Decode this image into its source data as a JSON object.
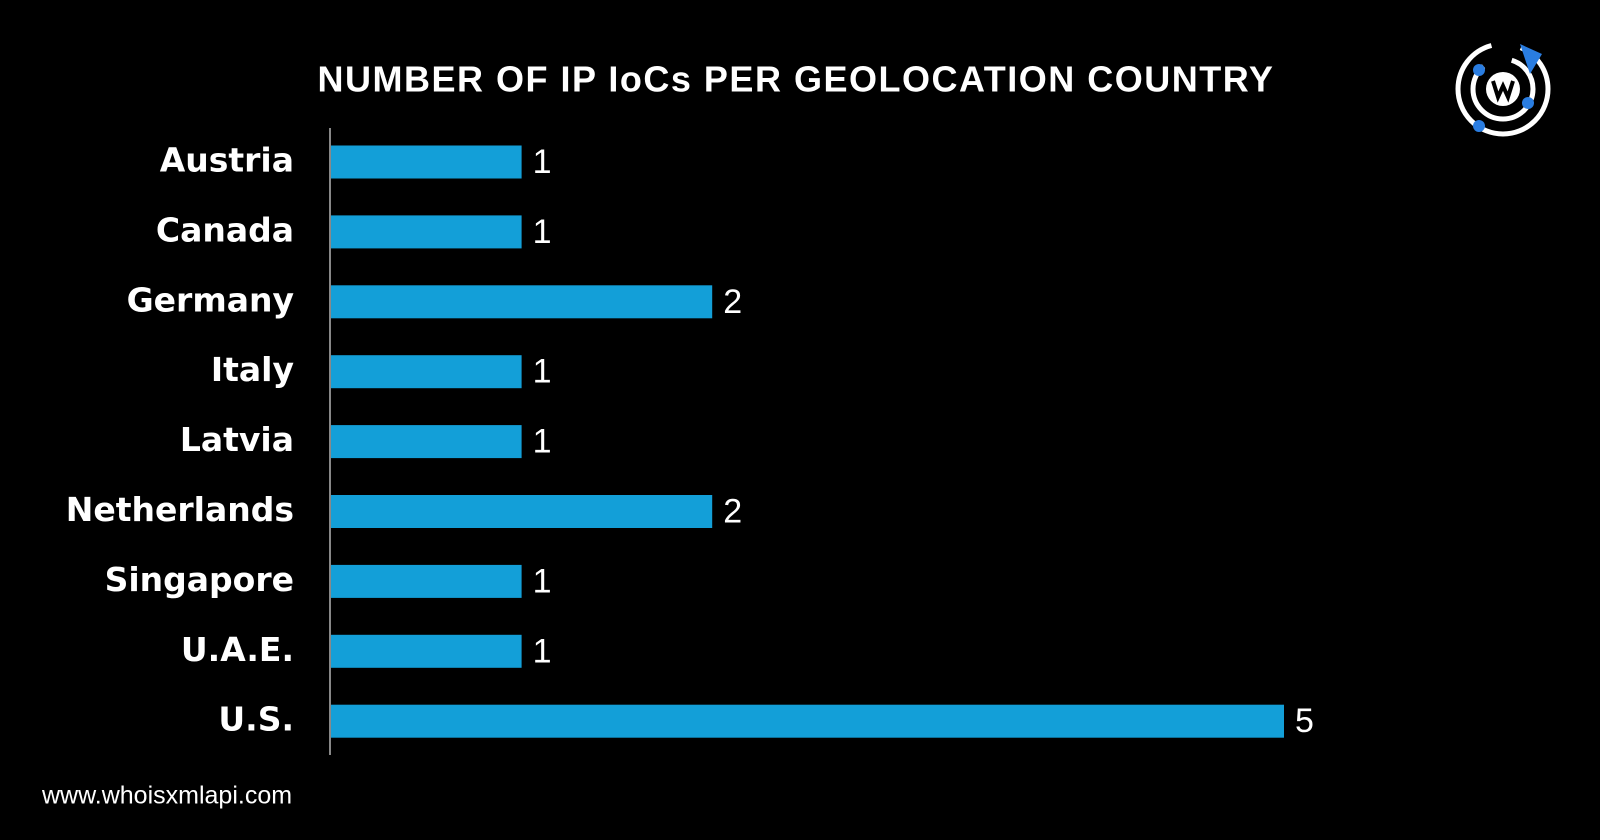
{
  "chart_data": {
    "type": "hbar",
    "title": "NUMBER OF IP IoCs PER GEOLOCATION COUNTRY",
    "categories": [
      "Austria",
      "Canada",
      "Germany",
      "Italy",
      "Latvia",
      "Netherlands",
      "Singapore",
      "U.A.E.",
      "U.S."
    ],
    "values": [
      1,
      1,
      2,
      1,
      1,
      2,
      1,
      1,
      5
    ],
    "color": "#139fd8",
    "xlim": [
      0,
      5
    ],
    "grid": false
  },
  "footer": "www.whoisxmlapi.com"
}
